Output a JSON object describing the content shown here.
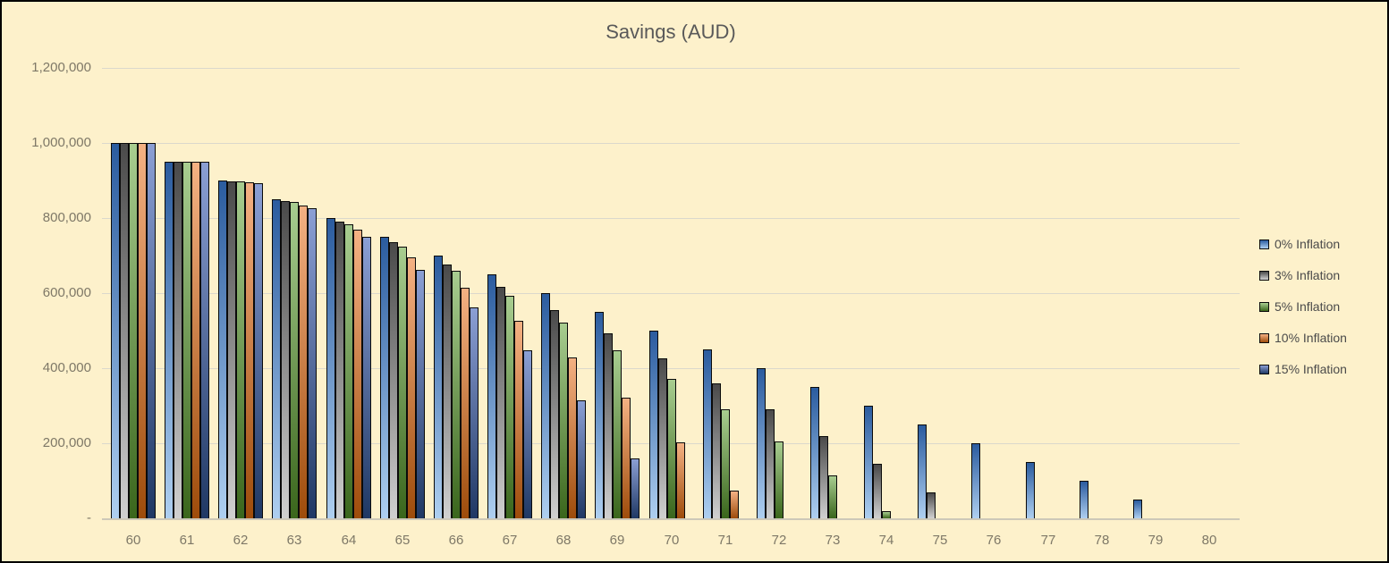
{
  "chart": {
    "title": "Savings (AUD)"
  },
  "chart_data": {
    "type": "bar",
    "title": "Savings (AUD)",
    "xlabel": "",
    "ylabel": "",
    "categories": [
      60,
      61,
      62,
      63,
      64,
      65,
      66,
      67,
      68,
      69,
      70,
      71,
      72,
      73,
      74,
      75,
      76,
      77,
      78,
      79,
      80
    ],
    "series": [
      {
        "name": "0% Inflation",
        "color_top": "#2B5C9F",
        "color_bottom": "#AECFF0",
        "values": [
          1000000,
          950000,
          900000,
          850000,
          800000,
          750000,
          700000,
          650000,
          600000,
          550000,
          500000,
          450000,
          400000,
          350000,
          300000,
          250000,
          200000,
          150000,
          100000,
          50000,
          0
        ]
      },
      {
        "name": "3% Inflation",
        "color_top": "#4A4A4A",
        "color_bottom": "#D0D0D0",
        "values": [
          1000000,
          950000,
          898500,
          845455,
          790819,
          734543,
          676580,
          616877,
          555383,
          492045,
          426806,
          359610,
          290399,
          219110,
          145684,
          70054,
          0,
          0,
          0,
          0,
          0
        ]
      },
      {
        "name": "5% Inflation",
        "color_top": "#A8CD90",
        "color_bottom": "#3A661C",
        "values": [
          1000000,
          950000,
          897500,
          842375,
          784494,
          723718,
          659904,
          592900,
          522545,
          448672,
          371105,
          289661,
          204144,
          114351,
          20068,
          0,
          0,
          0,
          0,
          0,
          0
        ]
      },
      {
        "name": "10% Inflation",
        "color_top": "#F4B183",
        "color_bottom": "#9E4C0B",
        "values": [
          1000000,
          950000,
          895000,
          834500,
          767950,
          694745,
          614219,
          525641,
          428206,
          321026,
          203129,
          73442,
          0,
          0,
          0,
          0,
          0,
          0,
          0,
          0,
          0
        ]
      },
      {
        "name": "15% Inflation",
        "color_top": "#8B9FD4",
        "color_bottom": "#1F3864",
        "values": [
          1000000,
          950000,
          892500,
          826375,
          750331,
          662881,
          562313,
          446660,
          313659,
          160708,
          0,
          0,
          0,
          0,
          0,
          0,
          0,
          0,
          0,
          0,
          0
        ]
      }
    ],
    "ylim": [
      0,
      1200000
    ],
    "ytick_interval": 200000,
    "ytick_labels_top_to_bottom": [
      "1,200,000",
      "1,000,000",
      "800,000",
      "600,000",
      "400,000",
      "200,000",
      "-"
    ],
    "grid": "horizontal",
    "legend_position": "right"
  },
  "colors": {
    "background": "#FDF1CB",
    "frame_border": "#000000",
    "title_text": "#595959",
    "axis_text": "#7E7867",
    "legend_text": "#4A4A4A",
    "gridline": "#DBD8CC",
    "bar_border": "#0A0A0A"
  }
}
